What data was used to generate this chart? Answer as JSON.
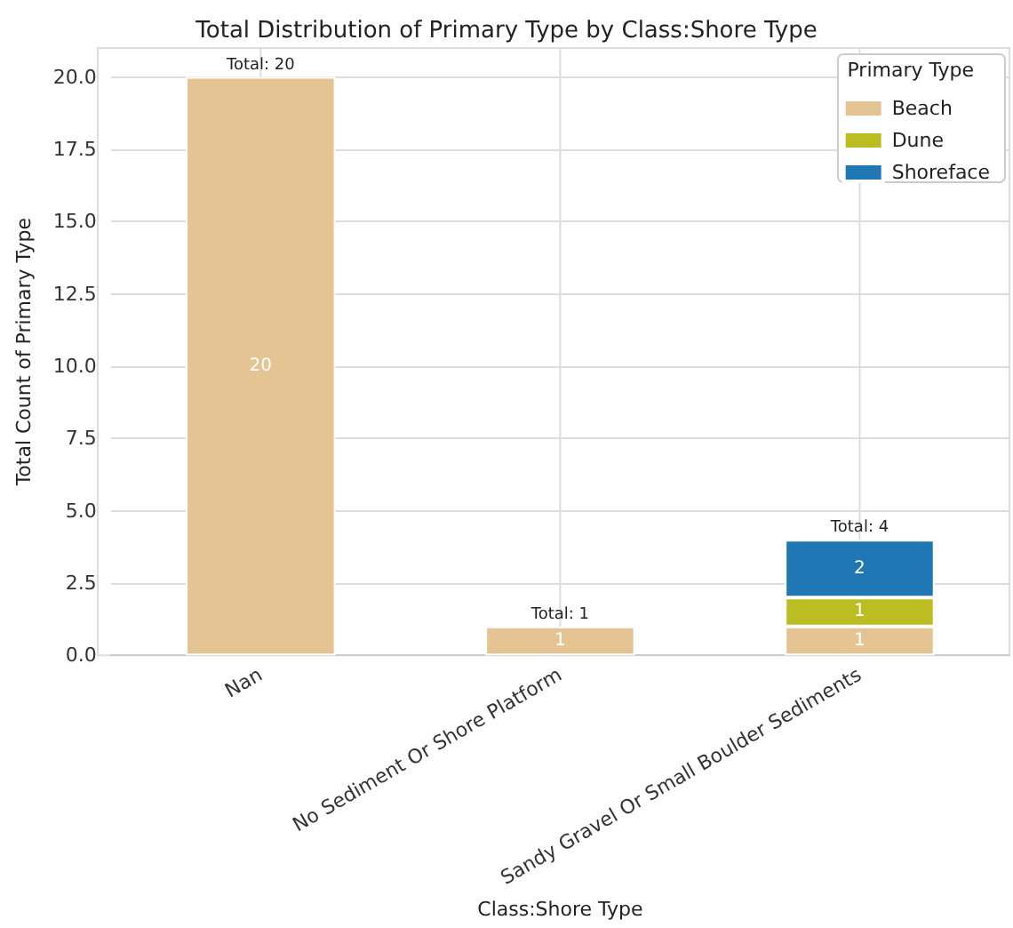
{
  "chart_data": {
    "type": "bar",
    "title": "Total Distribution of Primary Type by Class:Shore Type",
    "xlabel": "Class:Shore Type",
    "ylabel": "Total Count of Primary Type",
    "legend_title": "Primary Type",
    "categories": [
      "Nan",
      "No Sediment Or Shore Platform",
      "Sandy Gravel Or Small Boulder Sediments"
    ],
    "series": [
      {
        "name": "Beach",
        "color": "#e5c494",
        "values": [
          20,
          1,
          1
        ]
      },
      {
        "name": "Dune",
        "color": "#bcbd22",
        "values": [
          null,
          null,
          1
        ]
      },
      {
        "name": "Shoreface",
        "color": "#1f77b4",
        "values": [
          null,
          null,
          2
        ]
      }
    ],
    "stacked": true,
    "data_labels": true,
    "totals": [
      "Total: 20",
      "Total: 1",
      "Total: 4"
    ],
    "ylim": [
      0,
      21
    ],
    "yticks": [
      {
        "value": 0,
        "label": "0.0"
      },
      {
        "value": 2.5,
        "label": "2.5"
      },
      {
        "value": 5,
        "label": "5.0"
      },
      {
        "value": 7.5,
        "label": "7.5"
      },
      {
        "value": 10,
        "label": "10.0"
      },
      {
        "value": 12.5,
        "label": "12.5"
      },
      {
        "value": 15,
        "label": "15.0"
      },
      {
        "value": 17.5,
        "label": "17.5"
      },
      {
        "value": 20,
        "label": "20.0"
      }
    ],
    "grid": true,
    "legend": "top right"
  }
}
